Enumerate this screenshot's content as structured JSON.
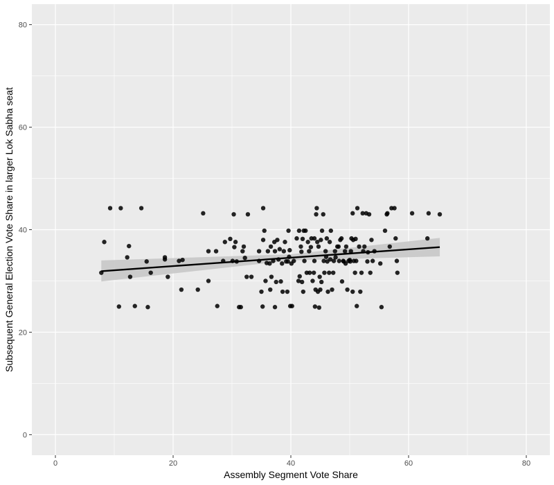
{
  "chart_data": {
    "type": "scatter",
    "title": "",
    "xlabel": "Assembly Segment Vote Share",
    "ylabel": "Subsequent General Election Vote Share in larger Lok Sabha seat",
    "xlim": [
      -4,
      84
    ],
    "ylim": [
      -4,
      84
    ],
    "x_ticks": [
      0,
      20,
      40,
      60,
      80
    ],
    "y_ticks": [
      0,
      20,
      40,
      60,
      80
    ],
    "x_tick_labels": [
      "0",
      "20",
      "40",
      "60",
      "80"
    ],
    "y_tick_labels": [
      "0",
      "20",
      "40",
      "60",
      "80"
    ],
    "grid": true,
    "legend": "none",
    "colors": {
      "panel": "#ebebeb",
      "grid": "#ffffff",
      "points": "#000000",
      "trend": "#000000",
      "band": "#c8c8c8"
    },
    "points": [
      [
        7.8,
        31.6
      ],
      [
        8.3,
        37.6
      ],
      [
        9.3,
        44.2
      ],
      [
        11.1,
        44.2
      ],
      [
        14.6,
        44.2
      ],
      [
        10.8,
        25.0
      ],
      [
        12.2,
        34.6
      ],
      [
        12.5,
        36.8
      ],
      [
        12.7,
        30.8
      ],
      [
        13.5,
        25.1
      ],
      [
        15.5,
        33.8
      ],
      [
        15.7,
        24.9
      ],
      [
        16.2,
        31.6
      ],
      [
        18.6,
        34.2
      ],
      [
        18.6,
        34.6
      ],
      [
        19.1,
        30.8
      ],
      [
        21.0,
        33.9
      ],
      [
        21.4,
        28.3
      ],
      [
        21.6,
        34.1
      ],
      [
        24.2,
        28.3
      ],
      [
        25.1,
        43.2
      ],
      [
        26.0,
        30.0
      ],
      [
        26.0,
        35.8
      ],
      [
        27.3,
        35.8
      ],
      [
        27.5,
        25.1
      ],
      [
        28.5,
        33.9
      ],
      [
        28.8,
        37.6
      ],
      [
        29.7,
        38.2
      ],
      [
        30.1,
        33.9
      ],
      [
        30.3,
        43.0
      ],
      [
        30.4,
        36.6
      ],
      [
        30.6,
        37.6
      ],
      [
        30.8,
        33.8
      ],
      [
        31.2,
        24.9
      ],
      [
        31.5,
        24.9
      ],
      [
        31.8,
        35.8
      ],
      [
        32.0,
        36.7
      ],
      [
        32.2,
        34.5
      ],
      [
        32.5,
        30.8
      ],
      [
        32.7,
        43.0
      ],
      [
        33.3,
        30.8
      ],
      [
        34.6,
        33.9
      ],
      [
        34.6,
        35.8
      ],
      [
        35.0,
        27.9
      ],
      [
        35.2,
        25.0
      ],
      [
        35.3,
        38.0
      ],
      [
        35.3,
        44.2
      ],
      [
        35.5,
        39.8
      ],
      [
        35.7,
        30.0
      ],
      [
        35.9,
        33.5
      ],
      [
        36.1,
        35.8
      ],
      [
        36.4,
        33.4
      ],
      [
        36.5,
        28.3
      ],
      [
        36.6,
        36.7
      ],
      [
        36.7,
        30.8
      ],
      [
        37.0,
        33.9
      ],
      [
        37.2,
        37.6
      ],
      [
        37.3,
        35.8
      ],
      [
        37.3,
        24.9
      ],
      [
        37.5,
        29.8
      ],
      [
        37.7,
        38.0
      ],
      [
        37.9,
        34.2
      ],
      [
        38.1,
        36.2
      ],
      [
        38.3,
        29.9
      ],
      [
        38.5,
        33.4
      ],
      [
        38.6,
        27.9
      ],
      [
        38.8,
        35.8
      ],
      [
        39.0,
        37.6
      ],
      [
        39.2,
        33.8
      ],
      [
        39.4,
        27.9
      ],
      [
        39.5,
        33.8
      ],
      [
        39.6,
        39.8
      ],
      [
        39.7,
        34.7
      ],
      [
        39.8,
        36.0
      ],
      [
        39.9,
        25.1
      ],
      [
        40.1,
        33.4
      ],
      [
        40.2,
        25.1
      ],
      [
        40.5,
        33.9
      ],
      [
        41.0,
        38.3
      ],
      [
        41.3,
        30.0
      ],
      [
        41.4,
        39.8
      ],
      [
        41.5,
        30.9
      ],
      [
        41.7,
        36.7
      ],
      [
        41.8,
        35.7
      ],
      [
        41.9,
        29.8
      ],
      [
        42.0,
        38.2
      ],
      [
        42.1,
        27.9
      ],
      [
        42.2,
        39.8
      ],
      [
        42.3,
        33.9
      ],
      [
        42.5,
        39.8
      ],
      [
        42.7,
        31.6
      ],
      [
        42.9,
        37.6
      ],
      [
        43.1,
        35.8
      ],
      [
        43.2,
        31.6
      ],
      [
        43.4,
        36.6
      ],
      [
        43.5,
        38.3
      ],
      [
        43.7,
        30.0
      ],
      [
        43.9,
        31.6
      ],
      [
        44.0,
        33.9
      ],
      [
        44.0,
        38.3
      ],
      [
        44.1,
        25.0
      ],
      [
        44.2,
        28.3
      ],
      [
        44.3,
        43.0
      ],
      [
        44.4,
        44.2
      ],
      [
        44.5,
        37.6
      ],
      [
        44.6,
        27.9
      ],
      [
        44.7,
        36.7
      ],
      [
        44.8,
        24.8
      ],
      [
        44.9,
        30.8
      ],
      [
        45.0,
        28.3
      ],
      [
        45.1,
        38.0
      ],
      [
        45.2,
        29.8
      ],
      [
        45.3,
        39.8
      ],
      [
        45.5,
        43.0
      ],
      [
        45.6,
        33.9
      ],
      [
        45.7,
        31.6
      ],
      [
        45.9,
        35.8
      ],
      [
        46.0,
        34.7
      ],
      [
        46.1,
        38.3
      ],
      [
        46.2,
        33.8
      ],
      [
        46.3,
        27.9
      ],
      [
        46.5,
        31.6
      ],
      [
        46.6,
        37.6
      ],
      [
        46.7,
        34.2
      ],
      [
        46.8,
        39.8
      ],
      [
        47.0,
        28.3
      ],
      [
        47.2,
        31.6
      ],
      [
        47.3,
        33.9
      ],
      [
        47.5,
        35.8
      ],
      [
        47.6,
        34.6
      ],
      [
        47.9,
        36.7
      ],
      [
        48.1,
        36.7
      ],
      [
        48.2,
        33.9
      ],
      [
        48.4,
        38.0
      ],
      [
        48.6,
        38.3
      ],
      [
        48.7,
        29.9
      ],
      [
        48.9,
        33.9
      ],
      [
        49.0,
        33.8
      ],
      [
        49.2,
        35.8
      ],
      [
        49.3,
        33.4
      ],
      [
        49.4,
        36.7
      ],
      [
        49.6,
        28.3
      ],
      [
        49.8,
        33.9
      ],
      [
        50.0,
        34.1
      ],
      [
        50.1,
        33.8
      ],
      [
        50.2,
        35.8
      ],
      [
        50.3,
        38.3
      ],
      [
        50.5,
        27.9
      ],
      [
        50.5,
        43.2
      ],
      [
        50.6,
        38.0
      ],
      [
        50.7,
        33.9
      ],
      [
        50.9,
        31.6
      ],
      [
        51.0,
        38.2
      ],
      [
        51.1,
        33.9
      ],
      [
        51.2,
        25.1
      ],
      [
        51.3,
        44.2
      ],
      [
        51.6,
        36.7
      ],
      [
        51.8,
        27.9
      ],
      [
        52.0,
        31.6
      ],
      [
        52.2,
        43.2
      ],
      [
        52.3,
        35.8
      ],
      [
        52.5,
        36.7
      ],
      [
        52.8,
        43.2
      ],
      [
        53.0,
        33.8
      ],
      [
        53.1,
        35.6
      ],
      [
        53.3,
        43.0
      ],
      [
        53.5,
        31.6
      ],
      [
        53.7,
        38.0
      ],
      [
        53.9,
        33.9
      ],
      [
        54.2,
        35.8
      ],
      [
        55.2,
        33.4
      ],
      [
        55.4,
        24.9
      ],
      [
        56.0,
        39.8
      ],
      [
        56.3,
        43.0
      ],
      [
        56.4,
        43.2
      ],
      [
        56.8,
        36.7
      ],
      [
        57.1,
        44.2
      ],
      [
        57.6,
        44.2
      ],
      [
        57.8,
        38.3
      ],
      [
        58.0,
        33.9
      ],
      [
        58.1,
        31.6
      ],
      [
        60.6,
        43.2
      ],
      [
        63.2,
        38.3
      ],
      [
        63.4,
        43.2
      ],
      [
        65.3,
        43.0
      ]
    ],
    "trend_line": {
      "x": [
        7.8,
        65.3
      ],
      "y": [
        31.9,
        36.6
      ],
      "ci_lower": [
        29.9,
        34.8
      ],
      "ci_mid_x": 40.0,
      "ci_mid": [
        34.0,
        35.2
      ],
      "ci_upper": [
        34.0,
        38.4
      ]
    }
  }
}
